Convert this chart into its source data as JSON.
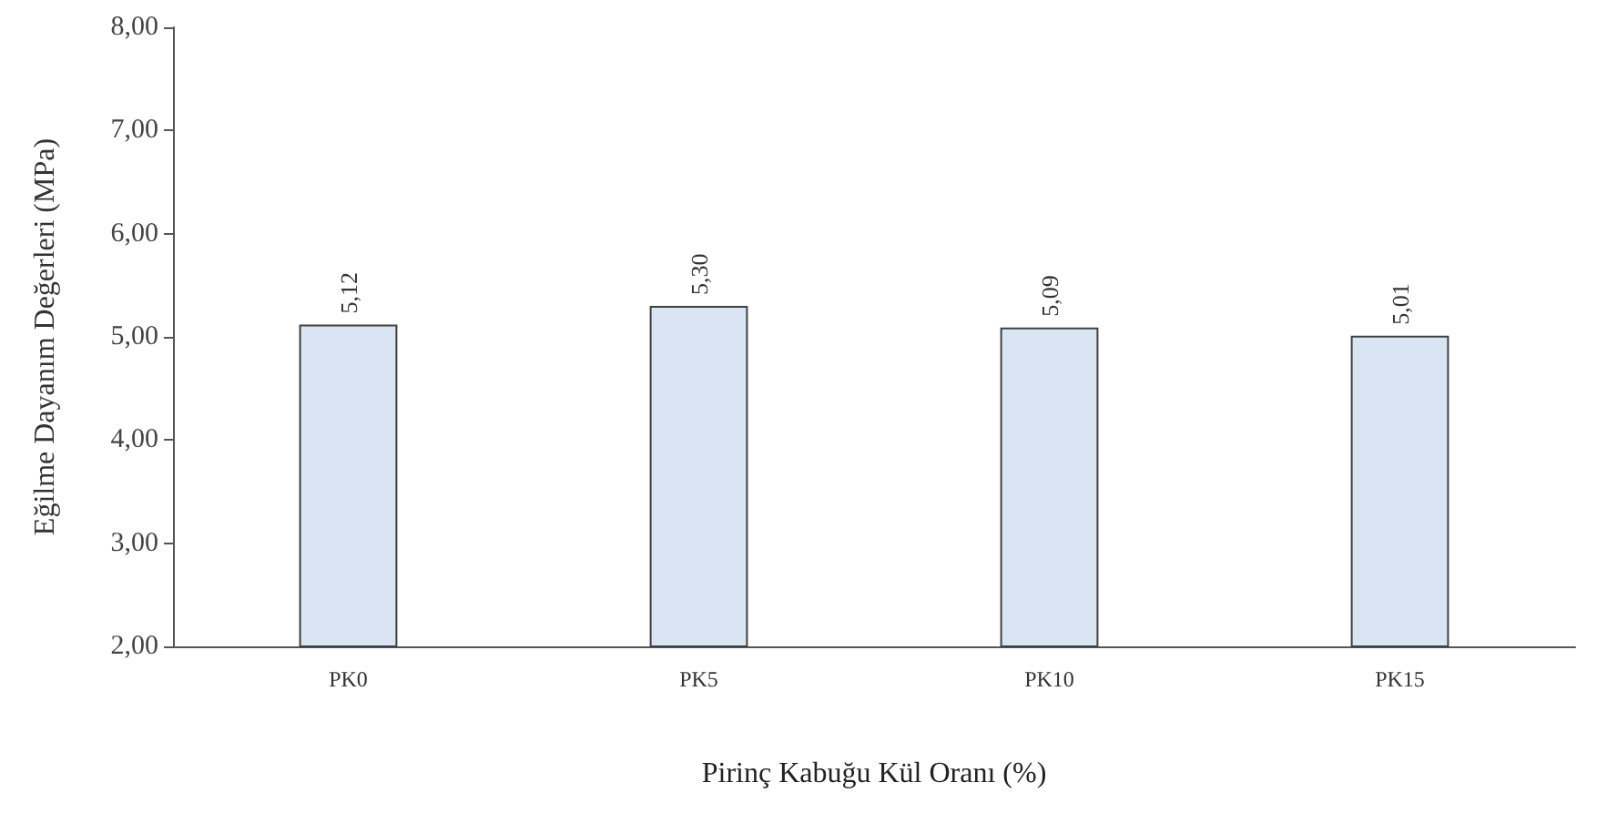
{
  "chart_data": {
    "type": "bar",
    "xlabel": "Pirinç Kabuğu Kül Oranı (%)",
    "ylabel": "Eğilme Dayanım Değerleri (MPa)",
    "categories": [
      "PK0",
      "PK5",
      "PK10",
      "PK15"
    ],
    "values": [
      5.12,
      5.3,
      5.09,
      5.01
    ],
    "value_labels": [
      "5,12",
      "5,30",
      "5,09",
      "5,01"
    ],
    "color": "#d9e5f2",
    "ylim": [
      2,
      8
    ],
    "yticks": [
      {
        "value": 2,
        "label": "2,00"
      },
      {
        "value": 3,
        "label": "3,00"
      },
      {
        "value": 4,
        "label": "4,00"
      },
      {
        "value": 5,
        "label": "5,00"
      },
      {
        "value": 6,
        "label": "6,00"
      },
      {
        "value": 7,
        "label": "7,00"
      },
      {
        "value": 8,
        "label": "8,00"
      }
    ],
    "grid": false
  }
}
